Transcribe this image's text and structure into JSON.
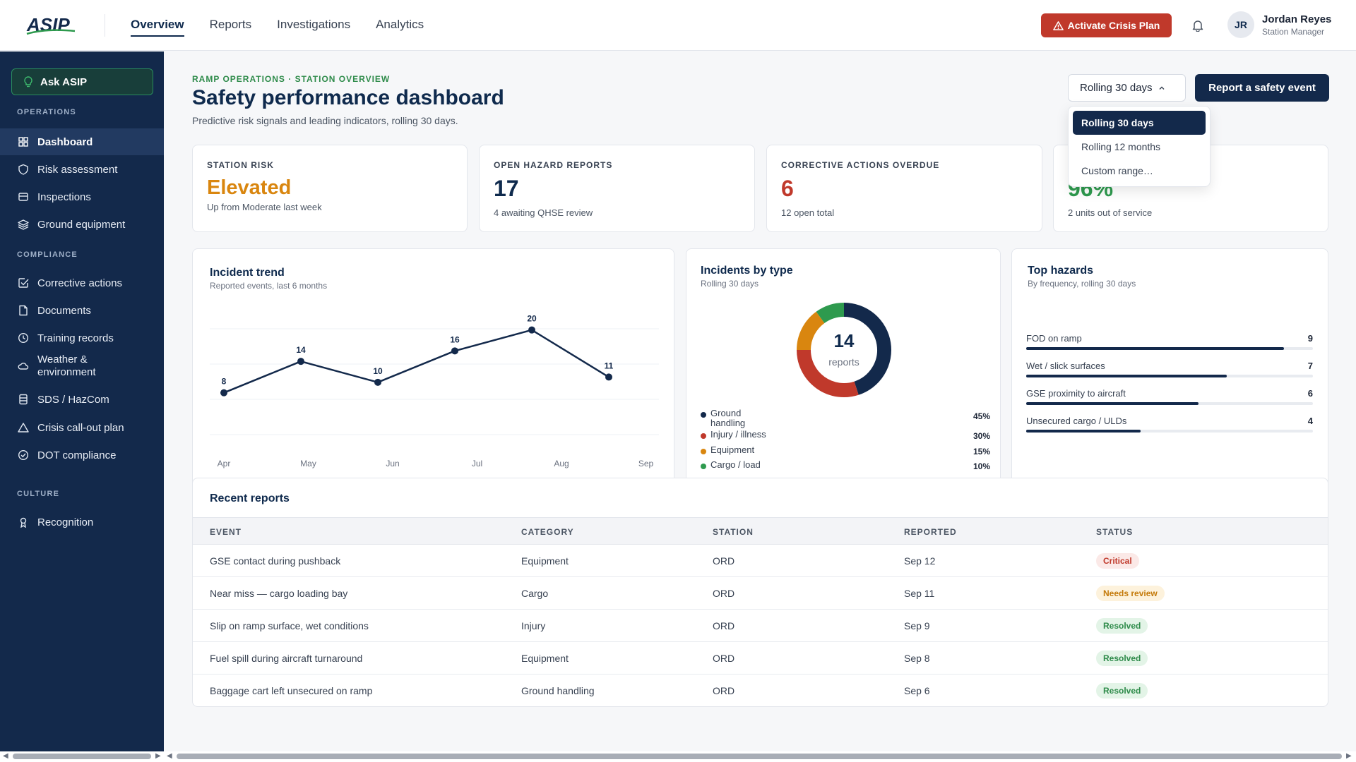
{
  "app": {
    "logo_text": "ASIP"
  },
  "topnav": [
    {
      "label": "Overview",
      "active": true
    },
    {
      "label": "Reports"
    },
    {
      "label": "Investigations"
    },
    {
      "label": "Analytics"
    }
  ],
  "header": {
    "crisis_label": "Activate Crisis Plan",
    "user_initials": "JR",
    "user_name": "Jordan Reyes",
    "user_role": "Station Manager"
  },
  "sidebar": {
    "ask_label": "Ask ASIP",
    "sections": {
      "operations": "OPERATIONS",
      "compliance": "COMPLIANCE",
      "culture": "CULTURE"
    },
    "items": [
      {
        "label": "Dashboard",
        "icon": "grid-icon",
        "active": true
      },
      {
        "label": "Risk assessment",
        "icon": "shield-icon"
      },
      {
        "label": "Inspections",
        "icon": "clipboard-icon"
      },
      {
        "label": "Ground equipment",
        "icon": "layers-icon"
      },
      {
        "label": "Corrective actions",
        "icon": "check-square-icon"
      },
      {
        "label": "Documents",
        "icon": "document-icon"
      },
      {
        "label": "Training records",
        "icon": "clock-icon"
      },
      {
        "label": "Weather & environment",
        "icon": "cloud-icon"
      },
      {
        "label": "SDS / HazCom",
        "icon": "database-icon"
      },
      {
        "label": "Crisis call-out plan",
        "icon": "warning-icon"
      },
      {
        "label": "DOT compliance",
        "icon": "check-circle-icon"
      },
      {
        "label": "Recognition",
        "icon": "award-icon"
      }
    ]
  },
  "page": {
    "breadcrumb": "RAMP OPERATIONS · STATION OVERVIEW",
    "title": "Safety performance dashboard",
    "subtitle": "Predictive risk signals and leading indicators, rolling 30 days.",
    "range_value": "Rolling 30 days",
    "report_button": "Report a safety event",
    "range_options": [
      "Rolling 30 days",
      "Rolling 12 months",
      "Custom range…"
    ]
  },
  "kpis": [
    {
      "label": "STATION RISK",
      "value": "Elevated",
      "note": "Up from Moderate last week",
      "color": "#d9860f"
    },
    {
      "label": "OPEN HAZARD REPORTS",
      "value": "17",
      "note": "4 awaiting QHSE review",
      "color": "#0f2a4d"
    },
    {
      "label": "CORRECTIVE ACTIONS OVERDUE",
      "value": "6",
      "note": "12 open total",
      "color": "#c0392b"
    },
    {
      "label": "",
      "value": "96%",
      "note": "2 units out of service",
      "color": "#2e9a4e"
    }
  ],
  "trend": {
    "title": "Incident trend",
    "subtitle": "Reported events, last 6 months"
  },
  "by_type": {
    "title": "Incidents by type",
    "subtitle": "Rolling 30 days",
    "total": "14",
    "total_label": "reports"
  },
  "hazards": {
    "title": "Top hazards",
    "subtitle": "By frequency, rolling 30 days",
    "items": [
      {
        "name": "FOD on ramp",
        "count": 9
      },
      {
        "name": "Wet / slick surfaces",
        "count": 7
      },
      {
        "name": "GSE proximity to aircraft",
        "count": 6
      },
      {
        "name": "Unsecured cargo / ULDs",
        "count": 4
      }
    ],
    "max": 10
  },
  "table": {
    "title": "Recent reports",
    "columns": [
      "EVENT",
      "CATEGORY",
      "STATION",
      "REPORTED",
      "STATUS"
    ],
    "rows": [
      {
        "event": "GSE contact during pushback",
        "category": "Equipment",
        "station": "ORD",
        "reported": "Sep 12",
        "status": "Critical"
      },
      {
        "event": "Near miss — cargo loading bay",
        "category": "Cargo",
        "station": "ORD",
        "reported": "Sep 11",
        "status": "Needs review"
      },
      {
        "event": "Slip on ramp surface, wet conditions",
        "category": "Injury",
        "station": "ORD",
        "reported": "Sep 9",
        "status": "Resolved"
      },
      {
        "event": "Fuel spill during aircraft turnaround",
        "category": "Equipment",
        "station": "ORD",
        "reported": "Sep 8",
        "status": "Resolved"
      },
      {
        "event": "Baggage cart left unsecured on ramp",
        "category": "Ground handling",
        "station": "ORD",
        "reported": "Sep 6",
        "status": "Resolved"
      }
    ]
  },
  "colors": {
    "navy": "#13294b",
    "accent_green": "#2e8b4a",
    "critical": "#c0392b",
    "review": "#d9860f",
    "resolved": "#2e9a4e"
  },
  "chart_data": [
    {
      "type": "line",
      "x": [
        "Apr",
        "May",
        "Jun",
        "Jul",
        "Aug",
        "Sep"
      ],
      "series": [
        {
          "values": [
            8,
            14,
            10,
            16,
            20,
            11
          ]
        }
      ],
      "ylim": [
        0,
        24
      ],
      "grid": true
    },
    {
      "type": "pie",
      "categories": [
        "Ground handling",
        "Injury / illness",
        "Equipment",
        "Cargo / load"
      ],
      "values": [
        45,
        30,
        15,
        10
      ],
      "labels": [
        "45%",
        "30%",
        "15%",
        "10%"
      ],
      "colors": [
        "#13294b",
        "#c0392b",
        "#d9860f",
        "#2e9a4e"
      ]
    }
  ]
}
